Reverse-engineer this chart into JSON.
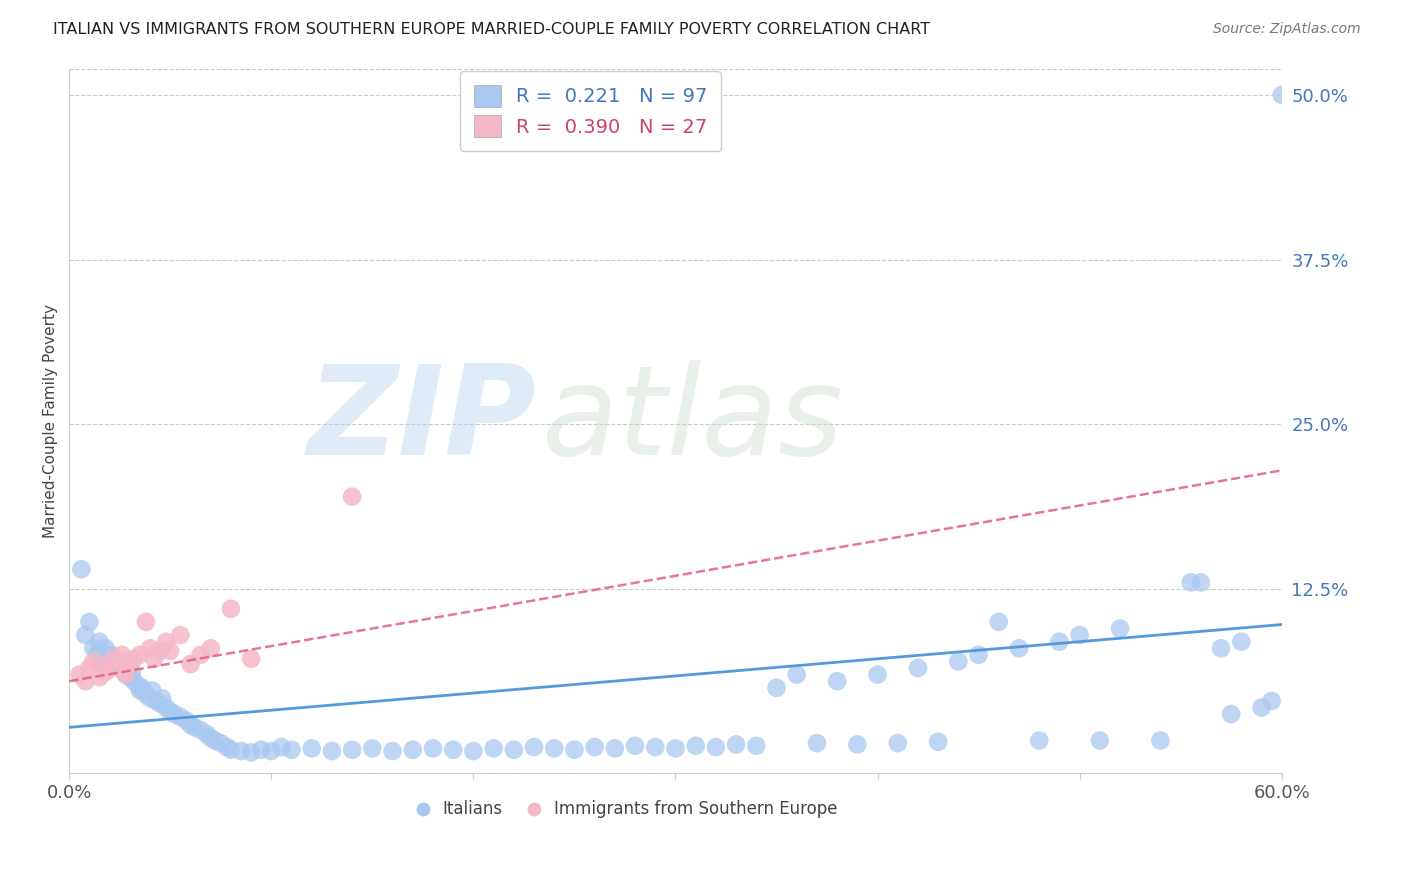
{
  "title": "ITALIAN VS IMMIGRANTS FROM SOUTHERN EUROPE MARRIED-COUPLE FAMILY POVERTY CORRELATION CHART",
  "source": "Source: ZipAtlas.com",
  "ylabel": "Married-Couple Family Poverty",
  "watermark_zip": "ZIP",
  "watermark_atlas": "atlas",
  "xlim": [
    0.0,
    0.6
  ],
  "ylim": [
    -0.015,
    0.52
  ],
  "yticks_right": [
    0.125,
    0.25,
    0.375,
    0.5
  ],
  "yticklabels_right": [
    "12.5%",
    "25.0%",
    "37.5%",
    "50.0%"
  ],
  "legend_label1": "Italians",
  "legend_label2": "Immigrants from Southern Europe",
  "R1": "0.221",
  "N1": "97",
  "R2": "0.390",
  "N2": "27",
  "color1": "#a8c8f0",
  "color2": "#f5b8c8",
  "line_color1": "#5599dd",
  "line_color2": "#e06080",
  "background_color": "#ffffff",
  "grid_color": "#cccccc",
  "blue_x": [
    0.006,
    0.008,
    0.01,
    0.012,
    0.014,
    0.015,
    0.016,
    0.018,
    0.02,
    0.021,
    0.022,
    0.023,
    0.025,
    0.026,
    0.028,
    0.03,
    0.031,
    0.032,
    0.034,
    0.035,
    0.036,
    0.038,
    0.04,
    0.041,
    0.043,
    0.045,
    0.046,
    0.048,
    0.05,
    0.052,
    0.055,
    0.058,
    0.06,
    0.062,
    0.065,
    0.068,
    0.07,
    0.072,
    0.075,
    0.078,
    0.08,
    0.085,
    0.09,
    0.095,
    0.1,
    0.105,
    0.11,
    0.12,
    0.13,
    0.14,
    0.15,
    0.16,
    0.17,
    0.18,
    0.19,
    0.2,
    0.21,
    0.22,
    0.23,
    0.24,
    0.25,
    0.26,
    0.27,
    0.28,
    0.29,
    0.3,
    0.31,
    0.32,
    0.33,
    0.34,
    0.35,
    0.36,
    0.37,
    0.38,
    0.39,
    0.4,
    0.41,
    0.42,
    0.43,
    0.44,
    0.45,
    0.46,
    0.47,
    0.48,
    0.49,
    0.5,
    0.51,
    0.52,
    0.54,
    0.555,
    0.56,
    0.57,
    0.575,
    0.58,
    0.59,
    0.595,
    0.6
  ],
  "blue_y": [
    0.14,
    0.09,
    0.1,
    0.08,
    0.075,
    0.085,
    0.07,
    0.08,
    0.065,
    0.075,
    0.072,
    0.068,
    0.07,
    0.065,
    0.06,
    0.058,
    0.062,
    0.055,
    0.052,
    0.048,
    0.05,
    0.045,
    0.042,
    0.048,
    0.04,
    0.038,
    0.042,
    0.035,
    0.032,
    0.03,
    0.028,
    0.025,
    0.022,
    0.02,
    0.018,
    0.015,
    0.012,
    0.01,
    0.008,
    0.005,
    0.003,
    0.002,
    0.001,
    0.003,
    0.002,
    0.005,
    0.003,
    0.004,
    0.002,
    0.003,
    0.004,
    0.002,
    0.003,
    0.004,
    0.003,
    0.002,
    0.004,
    0.003,
    0.005,
    0.004,
    0.003,
    0.005,
    0.004,
    0.006,
    0.005,
    0.004,
    0.006,
    0.005,
    0.007,
    0.006,
    0.05,
    0.06,
    0.008,
    0.055,
    0.007,
    0.06,
    0.008,
    0.065,
    0.009,
    0.07,
    0.075,
    0.1,
    0.08,
    0.01,
    0.085,
    0.09,
    0.01,
    0.095,
    0.01,
    0.13,
    0.13,
    0.08,
    0.03,
    0.085,
    0.035,
    0.04,
    0.5
  ],
  "pink_x": [
    0.005,
    0.008,
    0.01,
    0.012,
    0.015,
    0.018,
    0.02,
    0.022,
    0.024,
    0.026,
    0.028,
    0.03,
    0.032,
    0.035,
    0.038,
    0.04,
    0.042,
    0.045,
    0.048,
    0.05,
    0.055,
    0.06,
    0.065,
    0.07,
    0.08,
    0.09,
    0.14
  ],
  "pink_y": [
    0.06,
    0.055,
    0.065,
    0.07,
    0.058,
    0.062,
    0.068,
    0.072,
    0.065,
    0.075,
    0.06,
    0.068,
    0.072,
    0.075,
    0.1,
    0.08,
    0.072,
    0.078,
    0.085,
    0.078,
    0.09,
    0.068,
    0.075,
    0.08,
    0.11,
    0.072,
    0.195
  ],
  "blue_line_x": [
    0.0,
    0.6
  ],
  "blue_line_y": [
    0.02,
    0.098
  ],
  "pink_line_x": [
    0.0,
    0.6
  ],
  "pink_line_y": [
    0.055,
    0.215
  ]
}
